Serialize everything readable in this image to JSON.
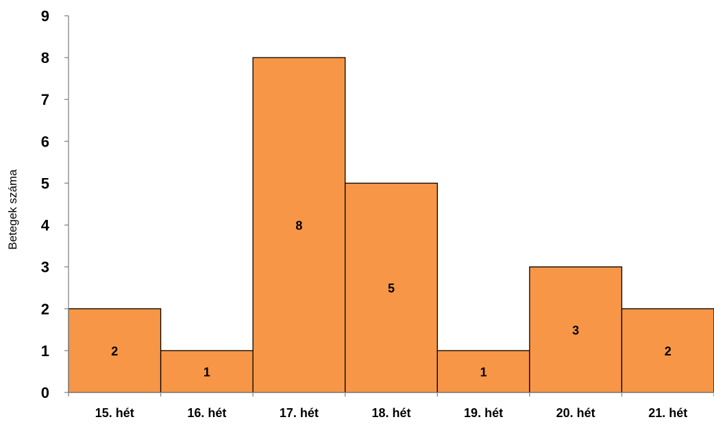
{
  "chart_data": {
    "type": "bar",
    "title": "",
    "xlabel": "",
    "ylabel": "Betegek száma",
    "categories": [
      "15. hét",
      "16. hét",
      "17. hét",
      "18. hét",
      "19. hét",
      "20. hét",
      "21. hét"
    ],
    "values": [
      2,
      1,
      8,
      5,
      1,
      3,
      2
    ],
    "data_labels": [
      "2",
      "1",
      "8",
      "5",
      "1",
      "3",
      "2"
    ],
    "ylim": [
      0,
      9
    ],
    "yticks": [
      "0",
      "1",
      "2",
      "3",
      "4",
      "5",
      "6",
      "7",
      "8",
      "9"
    ],
    "grid": false,
    "legend": "none",
    "bar_color": "#f79646",
    "bar_outline": "#000000"
  }
}
